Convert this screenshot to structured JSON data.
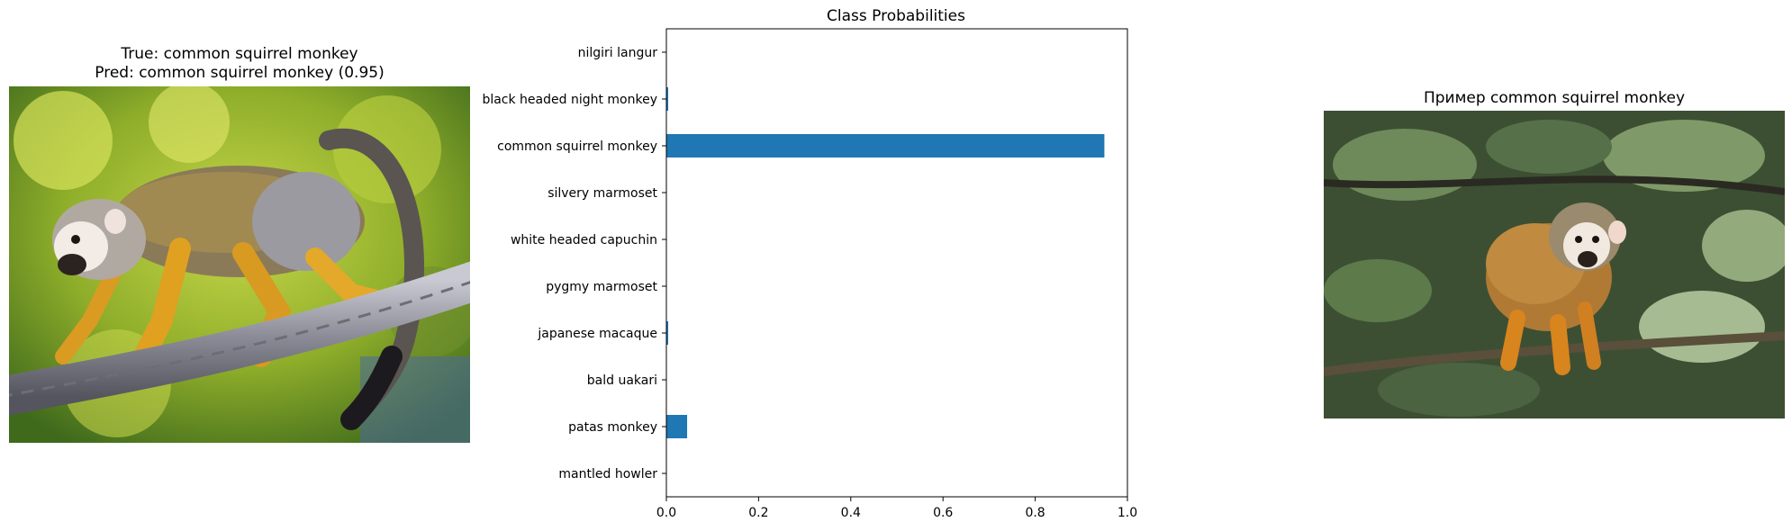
{
  "left_panel": {
    "title_line1": "True: common squirrel monkey",
    "title_line2": "Pred: common squirrel monkey (0.95)",
    "image_description": "squirrel-monkey-on-rope-photo"
  },
  "right_panel": {
    "title": "Пример common squirrel monkey",
    "image_description": "squirrel-monkey-on-branch-photo"
  },
  "colors": {
    "bar": "#1f77b4"
  },
  "chart_data": {
    "type": "bar",
    "orientation": "horizontal",
    "title": "Class Probabilities",
    "xlabel": "",
    "ylabel": "",
    "categories": [
      "nilgiri langur",
      "black headed night monkey",
      "common squirrel monkey",
      "silvery marmoset",
      "white headed capuchin",
      "pygmy marmoset",
      "japanese macaque",
      "bald uakari",
      "patas monkey",
      "mantled howler"
    ],
    "values": [
      0.0,
      0.004,
      0.95,
      0.001,
      0.0,
      0.001,
      0.004,
      0.0,
      0.045,
      0.0
    ],
    "xlim": [
      0.0,
      1.0
    ],
    "xticks": [
      "0.0",
      "0.2",
      "0.4",
      "0.6",
      "0.8",
      "1.0"
    ],
    "grid": false,
    "legend": "none"
  }
}
